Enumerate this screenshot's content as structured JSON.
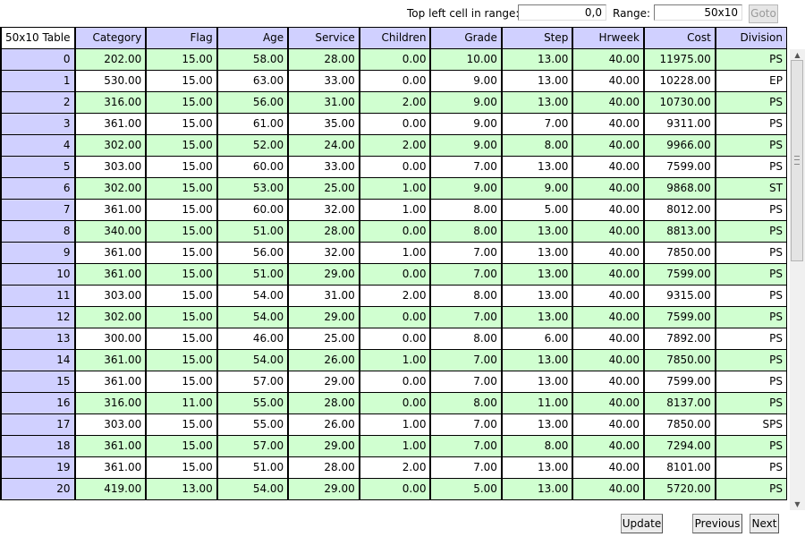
{
  "toolbar": {
    "top_left_label": "Top left cell in range:",
    "top_left_value": "0,0",
    "range_label": "Range:",
    "range_value": "50x10",
    "goto_label": "Goto"
  },
  "table": {
    "corner_label": "50x10 Table",
    "columns": [
      "Category",
      "Flag",
      "Age",
      "Service",
      "Children",
      "Grade",
      "Step",
      "Hrweek",
      "Cost",
      "Division"
    ],
    "rows": [
      {
        "index": "0",
        "cells": [
          "202.00",
          "15.00",
          "58.00",
          "28.00",
          "0.00",
          "10.00",
          "13.00",
          "40.00",
          "11975.00",
          "PS"
        ]
      },
      {
        "index": "1",
        "cells": [
          "530.00",
          "15.00",
          "63.00",
          "33.00",
          "0.00",
          "9.00",
          "13.00",
          "40.00",
          "10228.00",
          "EP"
        ]
      },
      {
        "index": "2",
        "cells": [
          "316.00",
          "15.00",
          "56.00",
          "31.00",
          "2.00",
          "9.00",
          "13.00",
          "40.00",
          "10730.00",
          "PS"
        ]
      },
      {
        "index": "3",
        "cells": [
          "361.00",
          "15.00",
          "61.00",
          "35.00",
          "0.00",
          "9.00",
          "7.00",
          "40.00",
          "9311.00",
          "PS"
        ]
      },
      {
        "index": "4",
        "cells": [
          "302.00",
          "15.00",
          "52.00",
          "24.00",
          "2.00",
          "9.00",
          "8.00",
          "40.00",
          "9966.00",
          "PS"
        ]
      },
      {
        "index": "5",
        "cells": [
          "303.00",
          "15.00",
          "60.00",
          "33.00",
          "0.00",
          "7.00",
          "13.00",
          "40.00",
          "7599.00",
          "PS"
        ]
      },
      {
        "index": "6",
        "cells": [
          "302.00",
          "15.00",
          "53.00",
          "25.00",
          "1.00",
          "9.00",
          "9.00",
          "40.00",
          "9868.00",
          "ST"
        ]
      },
      {
        "index": "7",
        "cells": [
          "361.00",
          "15.00",
          "60.00",
          "32.00",
          "1.00",
          "8.00",
          "5.00",
          "40.00",
          "8012.00",
          "PS"
        ]
      },
      {
        "index": "8",
        "cells": [
          "340.00",
          "15.00",
          "51.00",
          "28.00",
          "0.00",
          "8.00",
          "13.00",
          "40.00",
          "8813.00",
          "PS"
        ]
      },
      {
        "index": "9",
        "cells": [
          "361.00",
          "15.00",
          "56.00",
          "32.00",
          "1.00",
          "7.00",
          "13.00",
          "40.00",
          "7850.00",
          "PS"
        ]
      },
      {
        "index": "10",
        "cells": [
          "361.00",
          "15.00",
          "51.00",
          "29.00",
          "0.00",
          "7.00",
          "13.00",
          "40.00",
          "7599.00",
          "PS"
        ]
      },
      {
        "index": "11",
        "cells": [
          "303.00",
          "15.00",
          "54.00",
          "31.00",
          "2.00",
          "8.00",
          "13.00",
          "40.00",
          "9315.00",
          "PS"
        ]
      },
      {
        "index": "12",
        "cells": [
          "302.00",
          "15.00",
          "54.00",
          "29.00",
          "0.00",
          "7.00",
          "13.00",
          "40.00",
          "7599.00",
          "PS"
        ]
      },
      {
        "index": "13",
        "cells": [
          "300.00",
          "15.00",
          "46.00",
          "25.00",
          "0.00",
          "8.00",
          "6.00",
          "40.00",
          "7892.00",
          "PS"
        ]
      },
      {
        "index": "14",
        "cells": [
          "361.00",
          "15.00",
          "54.00",
          "26.00",
          "1.00",
          "7.00",
          "13.00",
          "40.00",
          "7850.00",
          "PS"
        ]
      },
      {
        "index": "15",
        "cells": [
          "361.00",
          "15.00",
          "57.00",
          "29.00",
          "0.00",
          "7.00",
          "13.00",
          "40.00",
          "7599.00",
          "PS"
        ]
      },
      {
        "index": "16",
        "cells": [
          "316.00",
          "11.00",
          "55.00",
          "28.00",
          "0.00",
          "8.00",
          "11.00",
          "40.00",
          "8137.00",
          "PS"
        ]
      },
      {
        "index": "17",
        "cells": [
          "303.00",
          "15.00",
          "55.00",
          "26.00",
          "1.00",
          "7.00",
          "13.00",
          "40.00",
          "7850.00",
          "SPS"
        ]
      },
      {
        "index": "18",
        "cells": [
          "361.00",
          "15.00",
          "57.00",
          "29.00",
          "1.00",
          "7.00",
          "8.00",
          "40.00",
          "7294.00",
          "PS"
        ]
      },
      {
        "index": "19",
        "cells": [
          "361.00",
          "15.00",
          "51.00",
          "28.00",
          "2.00",
          "7.00",
          "13.00",
          "40.00",
          "8101.00",
          "PS"
        ]
      },
      {
        "index": "20",
        "cells": [
          "419.00",
          "13.00",
          "54.00",
          "29.00",
          "0.00",
          "5.00",
          "13.00",
          "40.00",
          "5720.00",
          "PS"
        ]
      }
    ]
  },
  "scrollbar": {
    "up_icon": "arrow-up-icon",
    "down_icon": "arrow-down-icon"
  },
  "buttons": {
    "update": "Update",
    "previous": "Previous",
    "next": "Next"
  },
  "colors": {
    "header_bg": "#d0d0ff",
    "row_alt_bg": "#d0ffd0",
    "row_bg": "#ffffff"
  }
}
